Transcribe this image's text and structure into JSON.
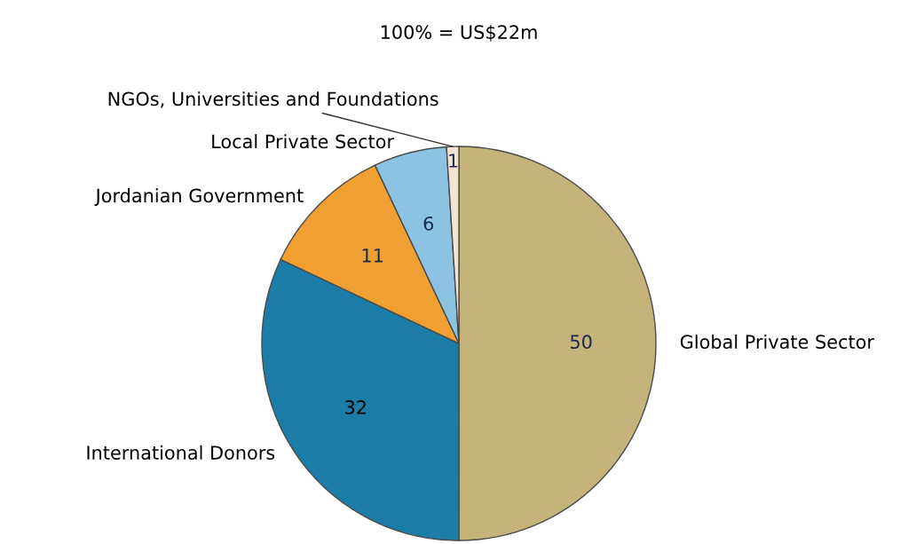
{
  "chart_data": {
    "type": "pie",
    "title": "100% = US$22m",
    "categories": [
      "Global Private Sector",
      "International Donors",
      "Jordanian Government",
      "Local Private Sector",
      "NGOs, Universities and Foundations"
    ],
    "values": [
      50,
      32,
      11,
      6,
      1
    ],
    "colors": [
      "#c4b47c",
      "#1b7ca8",
      "#f0a032",
      "#8cc3e3",
      "#f3e3d3"
    ],
    "data_labels": true,
    "legend": false
  }
}
